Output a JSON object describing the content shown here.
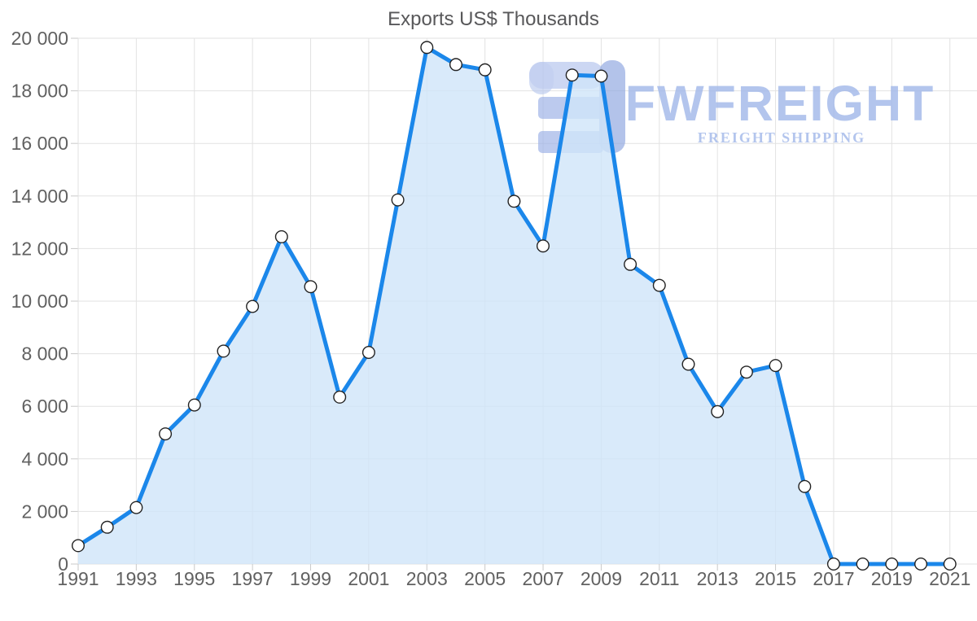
{
  "title": "Exports US$ Thousands",
  "watermark": {
    "brand": "FWFREIGHT",
    "tagline": "FREIGHT SHIPPING"
  },
  "chart_data": {
    "type": "area",
    "title": "Exports US$ Thousands",
    "xlabel": "",
    "ylabel": "",
    "x": [
      1991,
      1992,
      1993,
      1994,
      1995,
      1996,
      1997,
      1998,
      1999,
      2000,
      2001,
      2002,
      2003,
      2004,
      2005,
      2006,
      2007,
      2008,
      2009,
      2010,
      2011,
      2012,
      2013,
      2014,
      2015,
      2016,
      2017,
      2018,
      2019,
      2020,
      2021
    ],
    "values": [
      700,
      1400,
      2150,
      4950,
      6050,
      8100,
      9800,
      12450,
      10550,
      6350,
      8050,
      13850,
      19650,
      19000,
      18800,
      13800,
      12100,
      18600,
      18560,
      11400,
      10600,
      7600,
      5800,
      7300,
      7550,
      2950,
      0,
      0,
      0,
      0,
      0
    ],
    "x_tick_labels": [
      "1991",
      "1993",
      "1995",
      "1997",
      "1999",
      "2001",
      "2003",
      "2005",
      "2007",
      "2009",
      "2011",
      "2013",
      "2015",
      "2017",
      "2019",
      "2021"
    ],
    "y_ticks": [
      0,
      2000,
      4000,
      6000,
      8000,
      10000,
      12000,
      14000,
      16000,
      18000,
      20000
    ],
    "y_tick_labels": [
      "0",
      "2 000",
      "4 000",
      "6 000",
      "8 000",
      "10 000",
      "12 000",
      "14 000",
      "16 000",
      "18 000",
      "20 000"
    ],
    "ylim": [
      0,
      20000
    ],
    "xlim": [
      1991,
      2021
    ],
    "grid": "on",
    "legend": "none",
    "colors": {
      "line": "#1b87ea",
      "area": "#cfe5f9",
      "marker_fill": "#ffffff",
      "marker_stroke": "#222222",
      "gridline": "#e2e2e2",
      "tick": "#c9c9c9",
      "axis_label": "#616161",
      "title": "#58585a",
      "watermark": "#a3b9ea"
    }
  }
}
